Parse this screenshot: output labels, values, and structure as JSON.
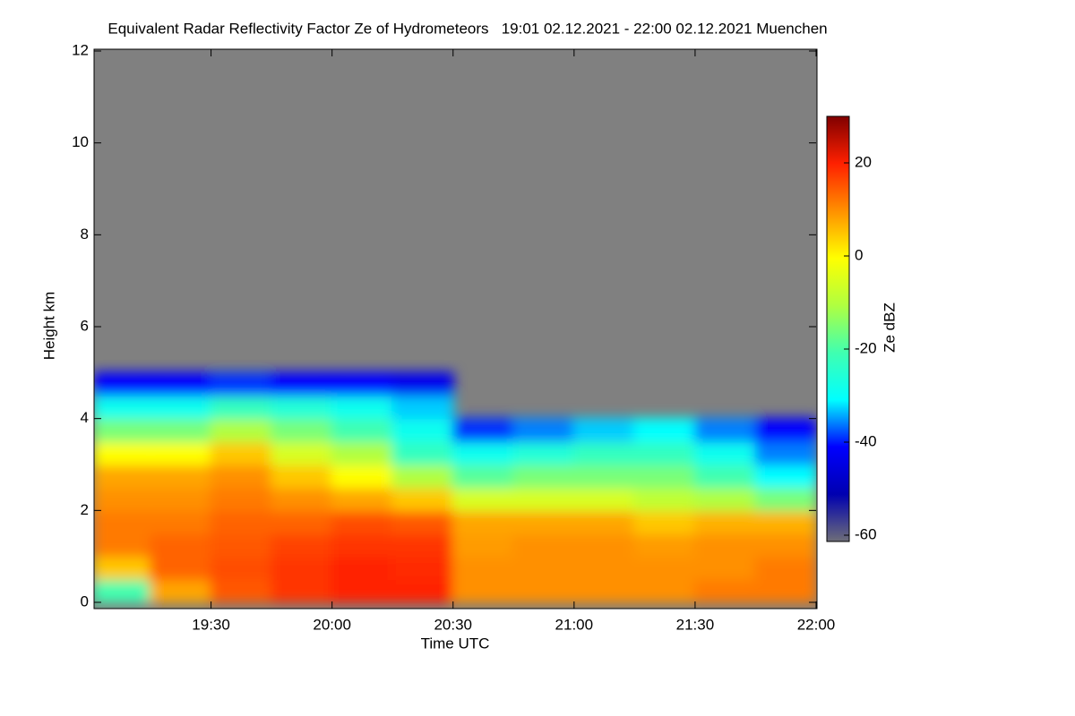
{
  "chart_data": {
    "type": "heatmap",
    "title": "Equivalent Radar Reflectivity Factor Ze of Hydrometeors   19:01 02.12.2021 - 22:00 02.12.2021 Muenchen",
    "x_label": "Time UTC",
    "y_label": "Height km",
    "colorbar_label": "Ze dBZ",
    "xlim": [
      "19:01",
      "22:00"
    ],
    "xticks": [
      "19:30",
      "20:00",
      "20:30",
      "21:00",
      "21:30",
      "22:00"
    ],
    "ylim": [
      0,
      12
    ],
    "yticks": [
      0,
      2,
      4,
      6,
      8,
      10,
      12
    ],
    "clim": [
      -60,
      30
    ],
    "cticks": [
      -60,
      -40,
      -20,
      0,
      20
    ],
    "colormap": [
      "#6e6e78",
      "#0000b0",
      "#0000ff",
      "#00ffff",
      "#40ffb0",
      "#b0ff40",
      "#ffff00",
      "#ff9000",
      "#ff2000",
      "#800000"
    ],
    "x_bins": [
      "19:01",
      "19:15",
      "19:30",
      "19:45",
      "20:00",
      "20:15",
      "20:30",
      "20:45",
      "21:00",
      "21:15",
      "21:30",
      "21:45",
      "22:00"
    ],
    "y_bins": [
      0,
      0.5,
      1,
      1.5,
      2,
      2.5,
      3,
      3.5,
      4,
      4.5,
      5
    ],
    "z": [
      [
        -20,
        8,
        15,
        18,
        20,
        20,
        10,
        10,
        10,
        10,
        12,
        12
      ],
      [
        5,
        14,
        16,
        18,
        20,
        19,
        10,
        10,
        10,
        10,
        10,
        12
      ],
      [
        12,
        14,
        15,
        17,
        18,
        18,
        9,
        10,
        10,
        9,
        10,
        10
      ],
      [
        12,
        12,
        14,
        14,
        16,
        15,
        8,
        8,
        8,
        5,
        7,
        7
      ],
      [
        10,
        10,
        12,
        10,
        8,
        5,
        -5,
        -5,
        -5,
        -8,
        -10,
        -15
      ],
      [
        8,
        8,
        10,
        5,
        0,
        -10,
        -18,
        -15,
        -15,
        -15,
        -20,
        -30
      ],
      [
        0,
        0,
        5,
        -5,
        -10,
        -22,
        -28,
        -25,
        -22,
        -22,
        -28,
        -35
      ],
      [
        -15,
        -15,
        -10,
        -15,
        -20,
        -28,
        -38,
        -35,
        -32,
        -30,
        -35,
        -40
      ],
      [
        -28,
        -28,
        -22,
        -25,
        -28,
        -32,
        null,
        null,
        null,
        null,
        null,
        null
      ],
      [
        -40,
        -40,
        -38,
        -40,
        -40,
        -42,
        null,
        null,
        null,
        null,
        null,
        null
      ]
    ]
  }
}
